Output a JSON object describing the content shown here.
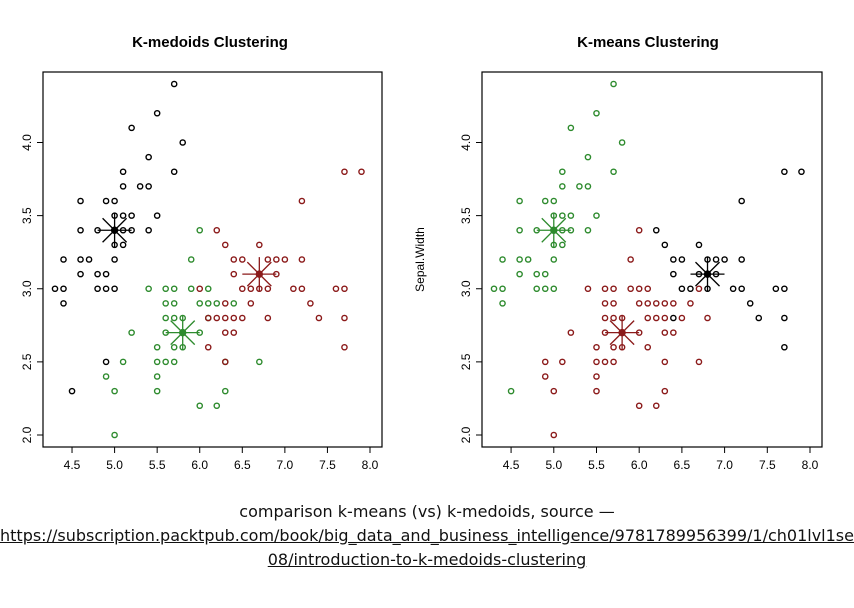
{
  "chart_data": [
    {
      "type": "scatter",
      "title": "K-medoids Clustering",
      "xlabel": "",
      "ylabel": "",
      "xlim": [
        4.3,
        8.0
      ],
      "ylim": [
        2.0,
        4.4
      ],
      "xticks": [
        "4.5",
        "5.0",
        "5.5",
        "6.0",
        "6.5",
        "7.0",
        "7.5",
        "8.0"
      ],
      "yticks": [
        "2.0",
        "2.5",
        "3.0",
        "3.5",
        "4.0"
      ],
      "grid": false,
      "series": [
        {
          "color": "#000000",
          "points": [
            [
              4.3,
              3.0
            ],
            [
              4.4,
              2.9
            ],
            [
              4.4,
              3.0
            ],
            [
              4.4,
              3.2
            ],
            [
              4.5,
              2.3
            ],
            [
              4.6,
              3.1
            ],
            [
              4.6,
              3.2
            ],
            [
              4.6,
              3.4
            ],
            [
              4.6,
              3.6
            ],
            [
              4.7,
              3.2
            ],
            [
              4.8,
              3.0
            ],
            [
              4.8,
              3.1
            ],
            [
              4.8,
              3.4
            ],
            [
              4.9,
              3.0
            ],
            [
              4.9,
              3.1
            ],
            [
              4.9,
              3.6
            ],
            [
              4.9,
              2.5
            ],
            [
              5.0,
              3.0
            ],
            [
              5.0,
              3.2
            ],
            [
              5.0,
              3.3
            ],
            [
              5.0,
              3.4
            ],
            [
              5.0,
              3.5
            ],
            [
              5.0,
              3.6
            ],
            [
              5.1,
              3.3
            ],
            [
              5.1,
              3.4
            ],
            [
              5.1,
              3.5
            ],
            [
              5.1,
              3.7
            ],
            [
              5.1,
              3.8
            ],
            [
              5.2,
              3.4
            ],
            [
              5.2,
              3.5
            ],
            [
              5.2,
              4.1
            ],
            [
              5.3,
              3.7
            ],
            [
              5.4,
              3.4
            ],
            [
              5.4,
              3.7
            ],
            [
              5.4,
              3.9
            ],
            [
              5.5,
              3.5
            ],
            [
              5.5,
              4.2
            ],
            [
              5.7,
              3.8
            ],
            [
              5.7,
              4.4
            ],
            [
              5.8,
              4.0
            ]
          ],
          "medoid": [
            5.0,
            3.4
          ]
        },
        {
          "color": "#2e8b2e",
          "points": [
            [
              4.9,
              2.4
            ],
            [
              5.0,
              2.0
            ],
            [
              5.0,
              2.3
            ],
            [
              5.1,
              2.5
            ],
            [
              5.2,
              2.7
            ],
            [
              5.4,
              3.0
            ],
            [
              5.5,
              2.3
            ],
            [
              5.5,
              2.4
            ],
            [
              5.5,
              2.5
            ],
            [
              5.5,
              2.6
            ],
            [
              5.6,
              2.5
            ],
            [
              5.6,
              2.7
            ],
            [
              5.6,
              2.8
            ],
            [
              5.6,
              2.9
            ],
            [
              5.6,
              3.0
            ],
            [
              5.7,
              2.5
            ],
            [
              5.7,
              2.6
            ],
            [
              5.7,
              2.8
            ],
            [
              5.7,
              2.9
            ],
            [
              5.7,
              3.0
            ],
            [
              5.8,
              2.6
            ],
            [
              5.8,
              2.7
            ],
            [
              5.8,
              2.8
            ],
            [
              5.9,
              3.0
            ],
            [
              5.9,
              3.2
            ],
            [
              6.0,
              2.2
            ],
            [
              6.0,
              2.7
            ],
            [
              6.0,
              2.9
            ],
            [
              6.0,
              3.4
            ],
            [
              6.1,
              2.8
            ],
            [
              6.1,
              2.9
            ],
            [
              6.1,
              3.0
            ],
            [
              6.2,
              2.2
            ],
            [
              6.2,
              2.9
            ],
            [
              6.3,
              2.3
            ],
            [
              6.3,
              2.5
            ],
            [
              6.4,
              2.9
            ],
            [
              6.7,
              2.5
            ]
          ],
          "medoid": [
            5.8,
            2.7
          ]
        },
        {
          "color": "#8b1a1a",
          "points": [
            [
              6.0,
              3.0
            ],
            [
              6.1,
              2.6
            ],
            [
              6.1,
              2.8
            ],
            [
              6.2,
              2.8
            ],
            [
              6.2,
              3.4
            ],
            [
              6.3,
              2.5
            ],
            [
              6.3,
              2.7
            ],
            [
              6.3,
              2.8
            ],
            [
              6.3,
              2.9
            ],
            [
              6.3,
              3.3
            ],
            [
              6.4,
              2.7
            ],
            [
              6.4,
              2.8
            ],
            [
              6.4,
              3.1
            ],
            [
              6.4,
              3.2
            ],
            [
              6.5,
              2.8
            ],
            [
              6.5,
              3.0
            ],
            [
              6.5,
              3.2
            ],
            [
              6.6,
              2.9
            ],
            [
              6.6,
              3.0
            ],
            [
              6.7,
              3.0
            ],
            [
              6.7,
              3.1
            ],
            [
              6.7,
              3.3
            ],
            [
              6.8,
              2.8
            ],
            [
              6.8,
              3.0
            ],
            [
              6.8,
              3.2
            ],
            [
              6.9,
              3.1
            ],
            [
              6.9,
              3.2
            ],
            [
              7.0,
              3.2
            ],
            [
              7.1,
              3.0
            ],
            [
              7.2,
              3.0
            ],
            [
              7.2,
              3.2
            ],
            [
              7.2,
              3.6
            ],
            [
              7.3,
              2.9
            ],
            [
              7.4,
              2.8
            ],
            [
              7.6,
              3.0
            ],
            [
              7.7,
              2.6
            ],
            [
              7.7,
              2.8
            ],
            [
              7.7,
              3.0
            ],
            [
              7.7,
              3.8
            ],
            [
              7.9,
              3.8
            ]
          ],
          "medoid": [
            6.7,
            3.1
          ]
        }
      ]
    },
    {
      "type": "scatter",
      "title": "K-means Clustering",
      "xlabel": "",
      "ylabel": "Sepal.Width",
      "xlim": [
        4.3,
        8.0
      ],
      "ylim": [
        2.0,
        4.4
      ],
      "xticks": [
        "4.5",
        "5.0",
        "5.5",
        "6.0",
        "6.5",
        "7.0",
        "7.5",
        "8.0"
      ],
      "yticks": [
        "2.0",
        "2.5",
        "3.0",
        "3.5",
        "4.0"
      ],
      "grid": false,
      "series": [
        {
          "color": "#2e8b2e",
          "points": [
            [
              4.3,
              3.0
            ],
            [
              4.4,
              2.9
            ],
            [
              4.4,
              3.0
            ],
            [
              4.4,
              3.2
            ],
            [
              4.5,
              2.3
            ],
            [
              4.6,
              3.1
            ],
            [
              4.6,
              3.2
            ],
            [
              4.6,
              3.4
            ],
            [
              4.6,
              3.6
            ],
            [
              4.7,
              3.2
            ],
            [
              4.8,
              3.0
            ],
            [
              4.8,
              3.1
            ],
            [
              4.8,
              3.4
            ],
            [
              4.9,
              3.0
            ],
            [
              4.9,
              3.1
            ],
            [
              4.9,
              3.6
            ],
            [
              5.0,
              3.0
            ],
            [
              5.0,
              3.2
            ],
            [
              5.0,
              3.3
            ],
            [
              5.0,
              3.4
            ],
            [
              5.0,
              3.5
            ],
            [
              5.0,
              3.6
            ],
            [
              5.1,
              3.3
            ],
            [
              5.1,
              3.4
            ],
            [
              5.1,
              3.5
            ],
            [
              5.1,
              3.7
            ],
            [
              5.1,
              3.8
            ],
            [
              5.2,
              3.4
            ],
            [
              5.2,
              3.5
            ],
            [
              5.2,
              4.1
            ],
            [
              5.3,
              3.7
            ],
            [
              5.4,
              3.4
            ],
            [
              5.4,
              3.7
            ],
            [
              5.4,
              3.9
            ],
            [
              5.5,
              3.5
            ],
            [
              5.5,
              4.2
            ],
            [
              5.7,
              3.8
            ],
            [
              5.7,
              4.4
            ],
            [
              5.8,
              4.0
            ]
          ],
          "center": [
            5.0,
            3.4
          ]
        },
        {
          "color": "#8b1a1a",
          "points": [
            [
              4.9,
              2.4
            ],
            [
              4.9,
              2.5
            ],
            [
              5.0,
              2.0
            ],
            [
              5.0,
              2.3
            ],
            [
              5.1,
              2.5
            ],
            [
              5.2,
              2.7
            ],
            [
              5.4,
              3.0
            ],
            [
              5.5,
              2.3
            ],
            [
              5.5,
              2.4
            ],
            [
              5.5,
              2.5
            ],
            [
              5.5,
              2.6
            ],
            [
              5.6,
              2.5
            ],
            [
              5.6,
              2.7
            ],
            [
              5.6,
              2.8
            ],
            [
              5.6,
              2.9
            ],
            [
              5.6,
              3.0
            ],
            [
              5.7,
              2.5
            ],
            [
              5.7,
              2.6
            ],
            [
              5.7,
              2.8
            ],
            [
              5.7,
              2.9
            ],
            [
              5.7,
              3.0
            ],
            [
              5.8,
              2.6
            ],
            [
              5.8,
              2.7
            ],
            [
              5.8,
              2.8
            ],
            [
              5.9,
              3.0
            ],
            [
              5.9,
              3.2
            ],
            [
              6.0,
              2.2
            ],
            [
              6.0,
              2.7
            ],
            [
              6.0,
              2.9
            ],
            [
              6.0,
              3.0
            ],
            [
              6.0,
              3.4
            ],
            [
              6.1,
              2.6
            ],
            [
              6.1,
              2.8
            ],
            [
              6.1,
              2.9
            ],
            [
              6.1,
              3.0
            ],
            [
              6.2,
              2.2
            ],
            [
              6.2,
              2.8
            ],
            [
              6.2,
              2.9
            ],
            [
              6.3,
              2.3
            ],
            [
              6.3,
              2.5
            ],
            [
              6.3,
              2.7
            ],
            [
              6.3,
              2.8
            ],
            [
              6.3,
              2.9
            ],
            [
              6.4,
              2.7
            ],
            [
              6.4,
              2.9
            ],
            [
              6.5,
              2.8
            ],
            [
              6.6,
              2.9
            ],
            [
              6.7,
              2.5
            ],
            [
              6.7,
              3.0
            ],
            [
              6.8,
              2.8
            ]
          ],
          "center": [
            5.8,
            2.7
          ]
        },
        {
          "color": "#000000",
          "points": [
            [
              6.2,
              3.4
            ],
            [
              6.3,
              3.3
            ],
            [
              6.4,
              2.8
            ],
            [
              6.4,
              3.1
            ],
            [
              6.4,
              3.2
            ],
            [
              6.5,
              3.0
            ],
            [
              6.5,
              3.2
            ],
            [
              6.6,
              3.0
            ],
            [
              6.7,
              3.1
            ],
            [
              6.7,
              3.3
            ],
            [
              6.8,
              3.0
            ],
            [
              6.8,
              3.2
            ],
            [
              6.9,
              3.1
            ],
            [
              6.9,
              3.2
            ],
            [
              7.0,
              3.2
            ],
            [
              7.1,
              3.0
            ],
            [
              7.2,
              3.0
            ],
            [
              7.2,
              3.2
            ],
            [
              7.2,
              3.6
            ],
            [
              7.3,
              2.9
            ],
            [
              7.4,
              2.8
            ],
            [
              7.6,
              3.0
            ],
            [
              7.7,
              2.6
            ],
            [
              7.7,
              2.8
            ],
            [
              7.7,
              3.0
            ],
            [
              7.7,
              3.8
            ],
            [
              7.9,
              3.8
            ]
          ],
          "center": [
            6.8,
            3.1
          ]
        }
      ]
    }
  ],
  "caption": {
    "line1": "comparison k-means (vs) k-medoids, source —",
    "link_line1": "https://subscription.packtpub.com/book/big_data_and_business_intelligence/9781789956399/1/ch01lvl1sec",
    "link_line2": "08/introduction-to-k-medoids-clustering"
  }
}
